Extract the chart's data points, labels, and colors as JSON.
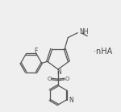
{
  "bg_color": "#efefef",
  "line_color": "#555555",
  "text_color": "#444444",
  "nha_text": "·nHA",
  "F_label": "F",
  "N_label": "N",
  "NH_label": "NH",
  "figsize": [
    1.5,
    1.39
  ],
  "dpi": 100,
  "lw": 0.9
}
